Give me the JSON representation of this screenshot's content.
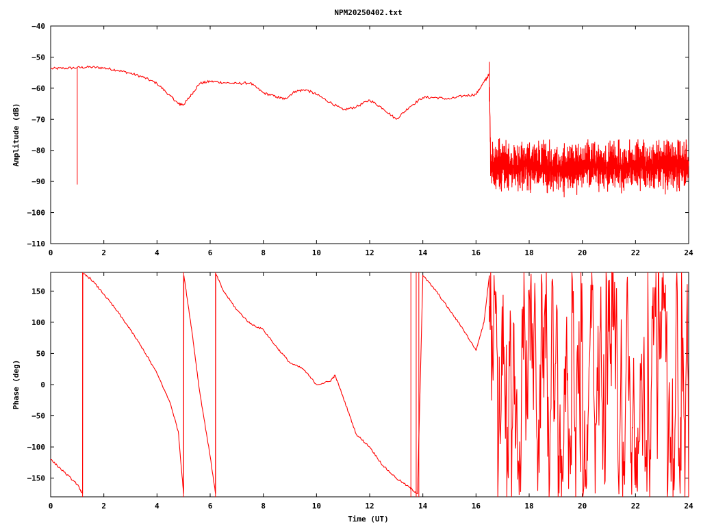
{
  "title": "NPM20250402.txt",
  "colors": {
    "trace": "#ff0000",
    "frame": "#000000",
    "background": "#ffffff"
  },
  "chart_data": [
    {
      "type": "line",
      "panel": "top",
      "title": "NPM20250402.txt",
      "xlabel": "",
      "ylabel": "Amplitude (dB)",
      "xlim": [
        0,
        24
      ],
      "ylim": [
        -110,
        -40
      ],
      "xticks": [
        "0",
        "2",
        "4",
        "6",
        "8",
        "10",
        "12",
        "14",
        "16",
        "18",
        "20",
        "22",
        "24"
      ],
      "yticks": [
        "-40",
        "-50",
        "-60",
        "-70",
        "-80",
        "-90",
        "-100",
        "-110"
      ],
      "grid": false,
      "series": [
        {
          "x": [
            0,
            0.5,
            1.0,
            1.5,
            2.0,
            2.5,
            3.0,
            3.5,
            4.0,
            4.5,
            4.8,
            5.0,
            5.3,
            5.6,
            6.0,
            6.5,
            7.0,
            7.5,
            8.0,
            8.5,
            8.8,
            9.2,
            9.6,
            10.0,
            10.5,
            11.0,
            11.5,
            12.0,
            12.5,
            13.0,
            13.5,
            14.0,
            14.5,
            15.0,
            15.5,
            16.0,
            16.3,
            16.5,
            16.55,
            17,
            17.5,
            18,
            18.5,
            19,
            19.5,
            20,
            20.5,
            21,
            21.5,
            22,
            22.5,
            23,
            23.5,
            24
          ],
          "y": [
            -53.7,
            -53.6,
            -53.4,
            -53.2,
            -53.5,
            -54.2,
            -55.2,
            -56.5,
            -58.5,
            -62.5,
            -65.0,
            -65.3,
            -62.0,
            -58.5,
            -57.8,
            -58.2,
            -58.5,
            -58.3,
            -61.5,
            -62.8,
            -63.5,
            -61.0,
            -60.5,
            -62.0,
            -64.5,
            -67.0,
            -66.0,
            -63.8,
            -66.5,
            -70.0,
            -66.0,
            -63.0,
            -63.0,
            -63.5,
            -62.5,
            -62.0,
            -58.0,
            -55.5,
            -85.0,
            -85.0,
            -85.5,
            -84.5,
            -85.0,
            -86.0,
            -85.5,
            -85.0,
            -84.8,
            -85.5,
            -85.0,
            -84.5,
            -85.5,
            -85.0,
            -84.8,
            -85.0
          ],
          "noise_from_x": 16.5,
          "noise_amplitude_db": 5,
          "spikes": [
            {
              "x": 1.0,
              "y": -91
            }
          ]
        }
      ]
    },
    {
      "type": "line",
      "panel": "bottom",
      "title": "",
      "xlabel": "Time (UT)",
      "ylabel": "Phase (deg)",
      "xlim": [
        0,
        24
      ],
      "ylim": [
        -180,
        180
      ],
      "xticks": [
        "0",
        "2",
        "4",
        "6",
        "8",
        "10",
        "12",
        "14",
        "16",
        "18",
        "20",
        "22",
        "24"
      ],
      "yticks": [
        "150",
        "100",
        "50",
        "0",
        "-50",
        "-100",
        "-150"
      ],
      "grid": false,
      "series": [
        {
          "x": [
            0,
            0.5,
            1.0,
            1.2,
            1.21,
            1.5,
            2.0,
            2.5,
            3.0,
            3.5,
            4.0,
            4.5,
            4.8,
            5.0,
            5.01,
            5.3,
            5.6,
            6.0,
            6.2,
            6.21,
            6.5,
            7.0,
            7.5,
            8.0,
            8.5,
            9.0,
            9.5,
            10.0,
            10.5,
            10.7,
            11.0,
            11.5,
            12.0,
            12.5,
            13.0,
            13.5,
            13.8,
            14.0,
            14.5,
            15.0,
            15.5,
            16.0,
            16.3,
            16.5
          ],
          "y": [
            -120,
            -140,
            -160,
            -175,
            178,
            170,
            145,
            118,
            88,
            55,
            18,
            -30,
            -75,
            -175,
            175,
            90,
            -10,
            -115,
            -175,
            178,
            150,
            120,
            98,
            88,
            60,
            35,
            25,
            0,
            5,
            15,
            -20,
            -80,
            -100,
            -130,
            -150,
            -165,
            -175,
            175,
            150,
            120,
            90,
            55,
            100,
            175
          ],
          "wrap_jumps_x": [
            1.2,
            5.0,
            6.2,
            13.55,
            13.75,
            13.85
          ],
          "noise_from_x": 16.5,
          "noise_range_deg": [
            -180,
            180
          ]
        }
      ]
    }
  ]
}
